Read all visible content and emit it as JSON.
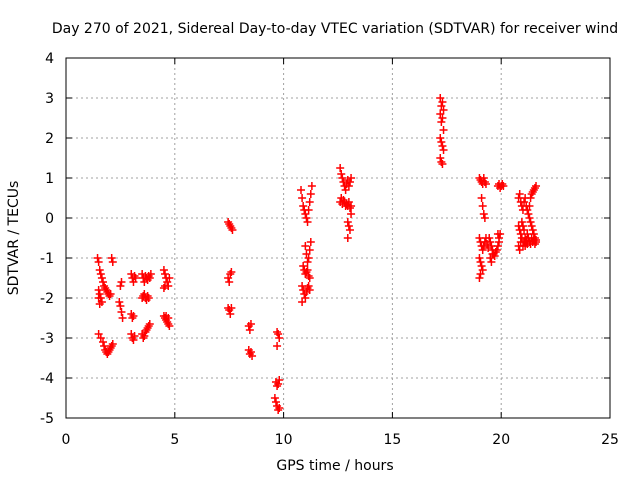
{
  "chart_data": {
    "type": "scatter",
    "title": "Day 270 of 2021, Sidereal Day-to-day VTEC variation (SDTVAR) for receiver wind",
    "xlabel": "GPS time / hours",
    "ylabel": "SDTVAR / TECUs",
    "xlim": [
      0,
      25
    ],
    "ylim": [
      -5,
      4
    ],
    "x_ticks": [
      0,
      5,
      10,
      15,
      20,
      25
    ],
    "y_ticks": [
      -5,
      -4,
      -3,
      -2,
      -1,
      0,
      1,
      2,
      3,
      4
    ],
    "x_tick_labels": [
      "0",
      "5",
      "10",
      "15",
      "20",
      "25"
    ],
    "y_tick_labels": [
      "-5",
      "-4",
      "-3",
      "-2",
      "-1",
      "0",
      "1",
      "2",
      "3",
      "4"
    ],
    "grid": true,
    "marker": "plus",
    "color": "#ff0000",
    "series": [
      {
        "name": "SDTVAR",
        "points": [
          [
            1.45,
            -1.0
          ],
          [
            1.5,
            -1.1
          ],
          [
            1.55,
            -1.3
          ],
          [
            1.6,
            -1.4
          ],
          [
            1.65,
            -1.5
          ],
          [
            1.7,
            -1.6
          ],
          [
            1.75,
            -1.7
          ],
          [
            1.8,
            -1.75
          ],
          [
            1.85,
            -1.8
          ],
          [
            1.9,
            -1.85
          ],
          [
            1.95,
            -1.9
          ],
          [
            2.0,
            -1.95
          ],
          [
            2.05,
            -1.9
          ],
          [
            1.5,
            -1.8
          ],
          [
            1.55,
            -1.9
          ],
          [
            1.6,
            -2.0
          ],
          [
            1.65,
            -2.1
          ],
          [
            1.5,
            -2.0
          ],
          [
            1.55,
            -2.15
          ],
          [
            1.5,
            -2.9
          ],
          [
            1.6,
            -3.0
          ],
          [
            1.7,
            -3.1
          ],
          [
            1.75,
            -3.2
          ],
          [
            1.8,
            -3.3
          ],
          [
            1.85,
            -3.35
          ],
          [
            1.9,
            -3.4
          ],
          [
            1.95,
            -3.35
          ],
          [
            2.0,
            -3.3
          ],
          [
            2.05,
            -3.25
          ],
          [
            2.1,
            -3.2
          ],
          [
            2.15,
            -3.15
          ],
          [
            2.1,
            -1.0
          ],
          [
            2.15,
            -1.1
          ],
          [
            2.5,
            -1.7
          ],
          [
            2.55,
            -1.6
          ],
          [
            2.45,
            -2.1
          ],
          [
            2.5,
            -2.2
          ],
          [
            2.55,
            -2.35
          ],
          [
            2.6,
            -2.5
          ],
          [
            3.0,
            -1.4
          ],
          [
            3.05,
            -1.5
          ],
          [
            3.1,
            -1.6
          ],
          [
            3.15,
            -1.45
          ],
          [
            3.2,
            -1.5
          ],
          [
            3.0,
            -2.4
          ],
          [
            3.05,
            -2.5
          ],
          [
            3.1,
            -2.45
          ],
          [
            3.0,
            -2.9
          ],
          [
            3.05,
            -3.0
          ],
          [
            3.1,
            -3.05
          ],
          [
            3.15,
            -2.95
          ],
          [
            3.5,
            -1.4
          ],
          [
            3.55,
            -1.5
          ],
          [
            3.6,
            -1.6
          ],
          [
            3.65,
            -1.45
          ],
          [
            3.7,
            -1.5
          ],
          [
            3.75,
            -1.55
          ],
          [
            3.8,
            -1.45
          ],
          [
            3.85,
            -1.5
          ],
          [
            3.9,
            -1.4
          ],
          [
            3.5,
            -2.0
          ],
          [
            3.55,
            -1.95
          ],
          [
            3.6,
            -1.9
          ],
          [
            3.65,
            -2.0
          ],
          [
            3.7,
            -2.05
          ],
          [
            3.75,
            -1.95
          ],
          [
            3.8,
            -2.0
          ],
          [
            3.5,
            -2.9
          ],
          [
            3.55,
            -3.0
          ],
          [
            3.6,
            -2.95
          ],
          [
            3.65,
            -2.85
          ],
          [
            3.7,
            -2.8
          ],
          [
            3.75,
            -2.75
          ],
          [
            3.8,
            -2.7
          ],
          [
            3.85,
            -2.65
          ],
          [
            4.5,
            -1.3
          ],
          [
            4.55,
            -1.4
          ],
          [
            4.6,
            -1.5
          ],
          [
            4.65,
            -1.6
          ],
          [
            4.7,
            -1.7
          ],
          [
            4.75,
            -1.5
          ],
          [
            4.5,
            -1.75
          ],
          [
            4.55,
            -1.7
          ],
          [
            4.5,
            -2.45
          ],
          [
            4.55,
            -2.5
          ],
          [
            4.6,
            -2.55
          ],
          [
            4.65,
            -2.6
          ],
          [
            4.7,
            -2.65
          ],
          [
            4.75,
            -2.7
          ],
          [
            4.6,
            -2.45
          ],
          [
            4.7,
            -2.5
          ],
          [
            7.45,
            -0.1
          ],
          [
            7.5,
            -0.15
          ],
          [
            7.55,
            -0.2
          ],
          [
            7.6,
            -0.25
          ],
          [
            7.65,
            -0.3
          ],
          [
            7.45,
            -1.5
          ],
          [
            7.5,
            -1.6
          ],
          [
            7.55,
            -1.4
          ],
          [
            7.6,
            -1.35
          ],
          [
            7.45,
            -2.25
          ],
          [
            7.5,
            -2.3
          ],
          [
            7.55,
            -2.4
          ],
          [
            7.6,
            -2.25
          ],
          [
            8.4,
            -2.7
          ],
          [
            8.45,
            -2.8
          ],
          [
            8.5,
            -2.65
          ],
          [
            8.4,
            -3.3
          ],
          [
            8.45,
            -3.4
          ],
          [
            8.5,
            -3.35
          ],
          [
            8.55,
            -3.45
          ],
          [
            9.7,
            -2.85
          ],
          [
            9.75,
            -2.9
          ],
          [
            9.8,
            -3.0
          ],
          [
            9.7,
            -3.2
          ],
          [
            9.65,
            -4.1
          ],
          [
            9.7,
            -4.2
          ],
          [
            9.75,
            -4.15
          ],
          [
            9.8,
            -4.05
          ],
          [
            9.6,
            -4.5
          ],
          [
            9.65,
            -4.6
          ],
          [
            9.7,
            -4.7
          ],
          [
            9.75,
            -4.8
          ],
          [
            9.8,
            -4.75
          ],
          [
            10.8,
            0.7
          ],
          [
            10.85,
            0.5
          ],
          [
            10.9,
            0.3
          ],
          [
            10.95,
            0.2
          ],
          [
            11.0,
            0.1
          ],
          [
            11.05,
            0.0
          ],
          [
            11.1,
            -0.1
          ],
          [
            11.15,
            0.2
          ],
          [
            11.2,
            0.4
          ],
          [
            11.25,
            0.6
          ],
          [
            11.3,
            0.8
          ],
          [
            11.0,
            -0.7
          ],
          [
            11.05,
            -0.9
          ],
          [
            11.1,
            -1.1
          ],
          [
            11.15,
            -1.0
          ],
          [
            11.2,
            -0.8
          ],
          [
            11.25,
            -0.6
          ],
          [
            10.9,
            -1.2
          ],
          [
            10.95,
            -1.3
          ],
          [
            11.0,
            -1.4
          ],
          [
            11.05,
            -1.35
          ],
          [
            11.1,
            -1.3
          ],
          [
            11.15,
            -1.45
          ],
          [
            11.2,
            -1.5
          ],
          [
            10.85,
            -1.7
          ],
          [
            10.9,
            -1.8
          ],
          [
            10.95,
            -1.9
          ],
          [
            11.0,
            -2.0
          ],
          [
            11.05,
            -1.85
          ],
          [
            11.1,
            -1.75
          ],
          [
            11.15,
            -1.7
          ],
          [
            11.2,
            -1.8
          ],
          [
            10.85,
            -2.1
          ],
          [
            12.6,
            1.25
          ],
          [
            12.65,
            1.1
          ],
          [
            12.7,
            1.0
          ],
          [
            12.75,
            0.9
          ],
          [
            12.8,
            0.8
          ],
          [
            12.85,
            0.7
          ],
          [
            12.9,
            0.85
          ],
          [
            12.95,
            0.95
          ],
          [
            13.0,
            0.8
          ],
          [
            13.05,
            0.9
          ],
          [
            13.1,
            1.0
          ],
          [
            12.6,
            0.4
          ],
          [
            12.65,
            0.5
          ],
          [
            12.7,
            0.35
          ],
          [
            12.75,
            0.45
          ],
          [
            12.8,
            0.4
          ],
          [
            12.85,
            0.3
          ],
          [
            12.9,
            0.35
          ],
          [
            12.95,
            0.3
          ],
          [
            13.0,
            0.4
          ],
          [
            13.05,
            0.25
          ],
          [
            13.1,
            0.3
          ],
          [
            12.95,
            -0.1
          ],
          [
            13.0,
            -0.2
          ],
          [
            13.05,
            -0.3
          ],
          [
            12.95,
            -0.5
          ],
          [
            13.1,
            0.1
          ],
          [
            17.2,
            3.0
          ],
          [
            17.25,
            2.8
          ],
          [
            17.3,
            2.9
          ],
          [
            17.35,
            2.7
          ],
          [
            17.2,
            2.6
          ],
          [
            17.25,
            2.4
          ],
          [
            17.3,
            2.5
          ],
          [
            17.35,
            2.2
          ],
          [
            17.2,
            2.0
          ],
          [
            17.25,
            1.9
          ],
          [
            17.3,
            1.8
          ],
          [
            17.35,
            1.7
          ],
          [
            17.2,
            1.5
          ],
          [
            17.25,
            1.4
          ],
          [
            17.3,
            1.35
          ],
          [
            19.0,
            1.0
          ],
          [
            19.05,
            0.95
          ],
          [
            19.1,
            0.9
          ],
          [
            19.15,
            0.85
          ],
          [
            19.2,
            1.0
          ],
          [
            19.25,
            0.9
          ],
          [
            19.3,
            0.85
          ],
          [
            19.1,
            0.5
          ],
          [
            19.15,
            0.3
          ],
          [
            19.2,
            0.1
          ],
          [
            19.25,
            0.0
          ],
          [
            19.0,
            -0.5
          ],
          [
            19.05,
            -0.6
          ],
          [
            19.1,
            -0.7
          ],
          [
            19.15,
            -0.8
          ],
          [
            19.2,
            -0.7
          ],
          [
            19.25,
            -0.6
          ],
          [
            19.3,
            -0.5
          ],
          [
            19.35,
            -0.65
          ],
          [
            19.4,
            -0.75
          ],
          [
            19.0,
            -1.0
          ],
          [
            19.05,
            -1.1
          ],
          [
            19.1,
            -1.2
          ],
          [
            19.15,
            -1.3
          ],
          [
            19.0,
            -1.5
          ],
          [
            19.05,
            -1.4
          ],
          [
            19.45,
            -0.5
          ],
          [
            19.5,
            -0.6
          ],
          [
            19.55,
            -0.7
          ],
          [
            19.6,
            -0.8
          ],
          [
            19.65,
            -0.9
          ],
          [
            19.7,
            -0.95
          ],
          [
            19.75,
            -0.85
          ],
          [
            19.8,
            -0.8
          ],
          [
            19.85,
            -0.7
          ],
          [
            19.9,
            -0.6
          ],
          [
            19.5,
            -1.0
          ],
          [
            19.55,
            -1.1
          ],
          [
            19.6,
            -0.9
          ],
          [
            19.85,
            -0.4
          ],
          [
            19.9,
            -0.5
          ],
          [
            19.95,
            -0.4
          ],
          [
            19.85,
            0.8
          ],
          [
            19.9,
            0.85
          ],
          [
            19.95,
            0.75
          ],
          [
            20.0,
            0.8
          ],
          [
            20.05,
            0.85
          ],
          [
            20.1,
            0.8
          ],
          [
            20.8,
            0.5
          ],
          [
            20.85,
            0.6
          ],
          [
            20.9,
            0.4
          ],
          [
            20.95,
            0.3
          ],
          [
            21.0,
            0.2
          ],
          [
            21.05,
            0.4
          ],
          [
            21.1,
            0.5
          ],
          [
            21.15,
            0.3
          ],
          [
            21.2,
            0.2
          ],
          [
            21.25,
            0.1
          ],
          [
            20.8,
            -0.2
          ],
          [
            20.85,
            -0.3
          ],
          [
            20.9,
            -0.4
          ],
          [
            20.95,
            -0.1
          ],
          [
            21.0,
            -0.2
          ],
          [
            21.05,
            -0.3
          ],
          [
            21.1,
            -0.5
          ],
          [
            21.15,
            -0.6
          ],
          [
            21.2,
            -0.4
          ],
          [
            21.25,
            -0.5
          ],
          [
            20.8,
            -0.7
          ],
          [
            20.85,
            -0.8
          ],
          [
            20.9,
            -0.6
          ],
          [
            20.95,
            -0.5
          ],
          [
            21.0,
            -0.7
          ],
          [
            21.05,
            -0.6
          ],
          [
            21.1,
            -0.7
          ],
          [
            21.15,
            -0.55
          ],
          [
            21.2,
            -0.65
          ],
          [
            21.3,
            0.0
          ],
          [
            21.35,
            -0.1
          ],
          [
            21.4,
            -0.2
          ],
          [
            21.45,
            -0.3
          ],
          [
            21.5,
            -0.4
          ],
          [
            21.55,
            -0.5
          ],
          [
            21.6,
            -0.55
          ],
          [
            21.3,
            0.3
          ],
          [
            21.35,
            0.5
          ],
          [
            21.4,
            0.6
          ],
          [
            21.45,
            0.65
          ],
          [
            21.5,
            0.7
          ],
          [
            21.55,
            0.75
          ],
          [
            21.6,
            0.8
          ],
          [
            21.3,
            -0.6
          ],
          [
            21.35,
            -0.65
          ],
          [
            21.4,
            -0.5
          ],
          [
            21.45,
            -0.6
          ],
          [
            21.5,
            -0.55
          ],
          [
            21.55,
            -0.65
          ],
          [
            21.6,
            -0.6
          ]
        ]
      }
    ]
  }
}
